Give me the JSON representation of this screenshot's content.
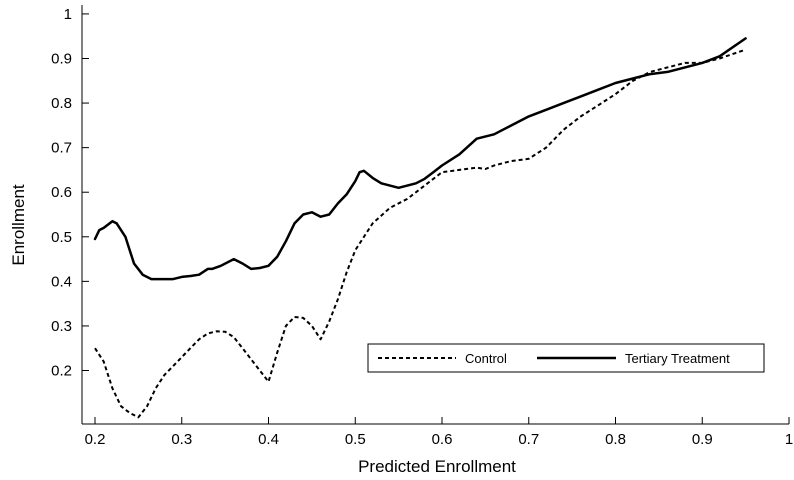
{
  "chart_data": {
    "type": "line",
    "xlabel": "Predicted Enrollment",
    "ylabel": "Enrollment",
    "xlim": [
      0.185,
      1.0
    ],
    "ylim": [
      0.08,
      1.02
    ],
    "xticks": [
      0.2,
      0.3,
      0.4,
      0.5,
      0.6,
      0.7,
      0.8,
      0.9,
      1
    ],
    "xtick_labels": [
      "0.2",
      "0.3",
      "0.4",
      "0.5",
      "0.6",
      "0.7",
      "0.8",
      "0.9",
      "1"
    ],
    "yticks": [
      0.2,
      0.3,
      0.4,
      0.5,
      0.6,
      0.7,
      0.8,
      0.9,
      1
    ],
    "ytick_labels": [
      "0.2",
      "0.3",
      "0.4",
      "0.5",
      "0.6",
      "0.7",
      "0.8",
      "0.9",
      "1"
    ],
    "grid": false,
    "legend": {
      "placement": "lower-right"
    },
    "series": [
      {
        "name": "Control",
        "style": "dashed",
        "color": "#000000",
        "x": [
          0.2,
          0.21,
          0.22,
          0.23,
          0.24,
          0.25,
          0.26,
          0.27,
          0.28,
          0.29,
          0.3,
          0.31,
          0.32,
          0.33,
          0.34,
          0.35,
          0.36,
          0.37,
          0.38,
          0.39,
          0.4,
          0.41,
          0.42,
          0.43,
          0.44,
          0.45,
          0.46,
          0.47,
          0.48,
          0.49,
          0.5,
          0.52,
          0.54,
          0.56,
          0.58,
          0.6,
          0.62,
          0.64,
          0.65,
          0.66,
          0.68,
          0.7,
          0.72,
          0.74,
          0.76,
          0.78,
          0.8,
          0.82,
          0.84,
          0.86,
          0.88,
          0.9,
          0.92,
          0.95
        ],
        "y": [
          0.25,
          0.22,
          0.16,
          0.12,
          0.105,
          0.095,
          0.12,
          0.16,
          0.19,
          0.21,
          0.23,
          0.25,
          0.27,
          0.283,
          0.288,
          0.287,
          0.275,
          0.25,
          0.225,
          0.2,
          0.175,
          0.24,
          0.3,
          0.32,
          0.318,
          0.3,
          0.27,
          0.31,
          0.36,
          0.42,
          0.47,
          0.53,
          0.565,
          0.585,
          0.615,
          0.645,
          0.65,
          0.655,
          0.652,
          0.66,
          0.67,
          0.675,
          0.7,
          0.74,
          0.77,
          0.795,
          0.82,
          0.85,
          0.87,
          0.88,
          0.89,
          0.89,
          0.9,
          0.92
        ]
      },
      {
        "name": "Tertiary Treatment",
        "style": "solid",
        "color": "#000000",
        "x": [
          0.2,
          0.205,
          0.21,
          0.22,
          0.225,
          0.235,
          0.245,
          0.255,
          0.265,
          0.275,
          0.29,
          0.3,
          0.31,
          0.32,
          0.33,
          0.335,
          0.345,
          0.36,
          0.37,
          0.38,
          0.39,
          0.4,
          0.41,
          0.42,
          0.43,
          0.44,
          0.45,
          0.46,
          0.47,
          0.48,
          0.49,
          0.5,
          0.505,
          0.51,
          0.52,
          0.53,
          0.55,
          0.57,
          0.58,
          0.59,
          0.6,
          0.62,
          0.64,
          0.66,
          0.68,
          0.7,
          0.72,
          0.74,
          0.76,
          0.78,
          0.8,
          0.82,
          0.84,
          0.86,
          0.88,
          0.9,
          0.92,
          0.95
        ],
        "y": [
          0.495,
          0.515,
          0.52,
          0.535,
          0.53,
          0.5,
          0.44,
          0.415,
          0.405,
          0.405,
          0.405,
          0.41,
          0.412,
          0.415,
          0.428,
          0.428,
          0.435,
          0.45,
          0.44,
          0.428,
          0.43,
          0.435,
          0.455,
          0.49,
          0.53,
          0.55,
          0.555,
          0.545,
          0.55,
          0.575,
          0.595,
          0.625,
          0.645,
          0.648,
          0.632,
          0.62,
          0.61,
          0.62,
          0.63,
          0.645,
          0.66,
          0.685,
          0.72,
          0.73,
          0.75,
          0.77,
          0.785,
          0.8,
          0.815,
          0.83,
          0.845,
          0.855,
          0.865,
          0.87,
          0.88,
          0.89,
          0.905,
          0.945
        ]
      }
    ]
  }
}
